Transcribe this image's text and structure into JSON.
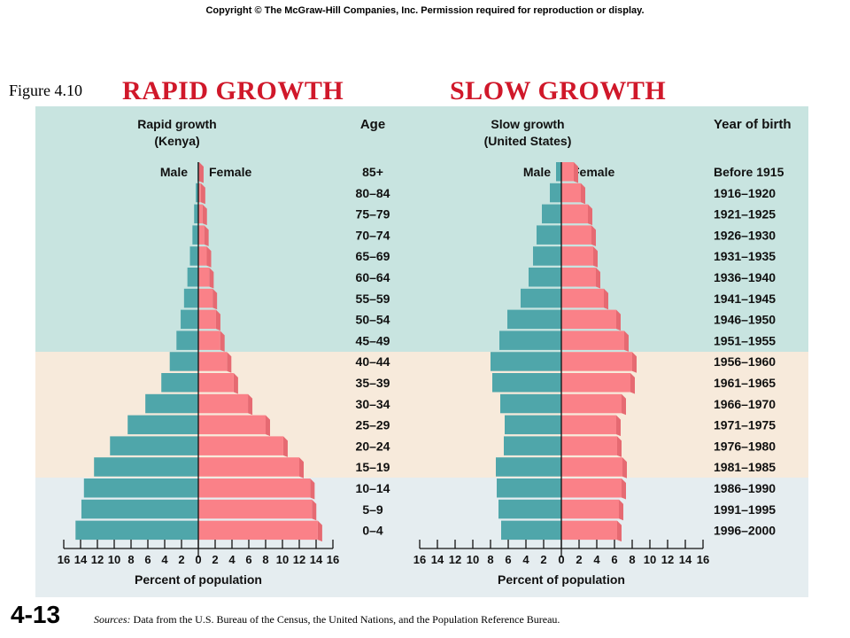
{
  "copyright": "Copyright © The McGraw-Hill Companies, Inc. Permission required for reproduction or display.",
  "figure_label": "Figure 4.10",
  "title_left": "RAPID GROWTH",
  "title_right": "SLOW GROWTH",
  "slide_number": "4-13",
  "sources_label": "Sources:",
  "sources_text": "Data from the U.S. Bureau of the Census, the United Nations, and the Population Reference Bureau.",
  "colors": {
    "male": "#4fa6aa",
    "female": "#fa8188",
    "band_top": "#c8e4e0",
    "band_middle": "#f7eadb",
    "band_bottom": "#e5edf0"
  },
  "chart_data": [
    {
      "type": "bar",
      "orientation": "horizontal-pyramid",
      "title": "Rapid growth",
      "subtitle": "(Kenya)",
      "left_series_label": "Male",
      "right_series_label": "Female",
      "category_header": "Age",
      "categories": [
        "85+",
        "80–84",
        "75–79",
        "70–74",
        "65–69",
        "60–64",
        "55–59",
        "50–54",
        "45–49",
        "40–44",
        "35–39",
        "30–34",
        "25–29",
        "20–24",
        "15–19",
        "10–14",
        "5–9",
        "0–4"
      ],
      "series": [
        {
          "name": "Male",
          "values": [
            0.1,
            0.3,
            0.5,
            0.7,
            1.0,
            1.3,
            1.7,
            2.1,
            2.6,
            3.4,
            4.4,
            6.3,
            8.4,
            10.5,
            12.4,
            13.6,
            13.9,
            14.6
          ]
        },
        {
          "name": "Female",
          "values": [
            0.1,
            0.3,
            0.5,
            0.7,
            1.0,
            1.3,
            1.7,
            2.1,
            2.6,
            3.4,
            4.2,
            5.9,
            8.0,
            10.1,
            12.0,
            13.3,
            13.5,
            14.2
          ]
        }
      ],
      "xlabel": "Percent of population",
      "xticks": [
        16,
        14,
        12,
        10,
        8,
        6,
        4,
        2,
        0,
        2,
        4,
        6,
        8,
        10,
        12,
        14,
        16
      ],
      "xlim": [
        -16,
        16
      ]
    },
    {
      "type": "bar",
      "orientation": "horizontal-pyramid",
      "title": "Slow growth",
      "subtitle": "(United States)",
      "left_series_label": "Male",
      "right_series_label": "Female",
      "category_header": "Year of birth",
      "categories": [
        "Before 1915",
        "1916–1920",
        "1921–1925",
        "1926–1930",
        "1931–1935",
        "1936–1940",
        "1941–1945",
        "1946–1950",
        "1951–1955",
        "1956–1960",
        "1961–1965",
        "1966–1970",
        "1971–1975",
        "1976–1980",
        "1981–1985",
        "1986–1990",
        "1991–1995",
        "1996–2000"
      ],
      "series": [
        {
          "name": "Male",
          "values": [
            0.6,
            1.3,
            2.2,
            2.8,
            3.2,
            3.7,
            4.6,
            6.1,
            7.0,
            8.0,
            7.8,
            6.9,
            6.4,
            6.5,
            7.4,
            7.3,
            7.1,
            6.8
          ]
        },
        {
          "name": "Female",
          "values": [
            1.4,
            2.2,
            3.0,
            3.4,
            3.6,
            3.9,
            4.8,
            6.2,
            7.1,
            8.0,
            7.8,
            6.8,
            6.2,
            6.3,
            6.9,
            6.8,
            6.5,
            6.3
          ]
        }
      ],
      "xlabel": "Percent of population",
      "xticks": [
        16,
        14,
        12,
        10,
        8,
        6,
        4,
        2,
        0,
        2,
        4,
        6,
        8,
        10,
        12,
        14,
        16
      ],
      "xlim": [
        -16,
        16
      ]
    }
  ]
}
